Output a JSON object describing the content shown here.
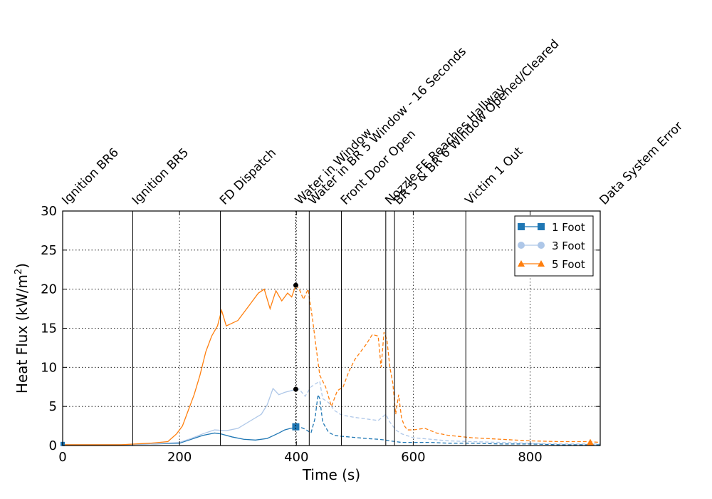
{
  "chart_data": {
    "type": "line",
    "xlabel": "Time (s)",
    "ylabel_main": "Heat Flux (kW/m",
    "ylabel_sup": "2",
    "ylabel_close": ")",
    "xlim": [
      0,
      920
    ],
    "ylim": [
      0,
      30
    ],
    "x_ticks": [
      0,
      200,
      400,
      600,
      800
    ],
    "y_ticks": [
      0,
      5,
      10,
      15,
      20,
      25,
      30
    ],
    "grid": true,
    "legend_position": "top-right",
    "events": [
      {
        "t": 0,
        "label": "Ignition BR6"
      },
      {
        "t": 120,
        "label": "Ignition BR5"
      },
      {
        "t": 270,
        "label": "FD Dispatch"
      },
      {
        "t": 399,
        "label": "Water in Window"
      },
      {
        "t": 422,
        "label": "Water in BR 5 Window - 16 Seconds"
      },
      {
        "t": 477,
        "label": "Front Door Open"
      },
      {
        "t": 553,
        "label": "Nozzle FF Reaches Hallway"
      },
      {
        "t": 568,
        "label": "BR 5 & BR 6 Window Opened/Cleared"
      },
      {
        "t": 690,
        "label": "Victim 1 Out"
      },
      {
        "t": 920,
        "label": "Data System Error"
      }
    ],
    "series": [
      {
        "name": "1 Foot",
        "color": "#1f77b4",
        "marker": "square",
        "x": [
          0,
          50,
          100,
          150,
          200,
          220,
          240,
          260,
          270,
          290,
          310,
          330,
          350,
          370,
          380,
          390,
          399,
          405,
          415,
          425,
          432,
          437,
          440,
          445,
          455,
          465,
          475,
          490,
          505,
          520,
          540,
          553,
          560,
          570,
          580,
          600,
          630,
          660,
          700,
          750,
          800,
          850,
          900,
          920
        ],
        "y": [
          0.1,
          0.1,
          0.1,
          0.2,
          0.3,
          0.8,
          1.3,
          1.6,
          1.5,
          1.1,
          0.8,
          0.7,
          0.9,
          1.6,
          2.0,
          2.2,
          2.3,
          2.4,
          2.1,
          1.6,
          3.5,
          6.5,
          6.0,
          3.0,
          1.7,
          1.3,
          1.2,
          1.1,
          1.0,
          0.9,
          0.8,
          0.7,
          0.6,
          0.5,
          0.4,
          0.4,
          0.4,
          0.3,
          0.3,
          0.2,
          0.2,
          0.1,
          0.1,
          0.1
        ]
      },
      {
        "name": "3 Foot",
        "color": "#aec7e8",
        "marker": "circle",
        "x": [
          0,
          50,
          100,
          150,
          200,
          220,
          240,
          260,
          280,
          300,
          320,
          340,
          350,
          360,
          370,
          380,
          390,
          399,
          405,
          415,
          425,
          435,
          440,
          445,
          455,
          465,
          475,
          485,
          500,
          520,
          540,
          553,
          560,
          570,
          580,
          600,
          630,
          660,
          700,
          750,
          800,
          850,
          900,
          920
        ],
        "y": [
          0.1,
          0.1,
          0.1,
          0.2,
          0.4,
          0.9,
          1.5,
          2.0,
          1.9,
          2.2,
          3.1,
          4.0,
          5.2,
          7.3,
          6.5,
          6.8,
          7.0,
          7.2,
          7.2,
          6.3,
          7.5,
          8.0,
          8.2,
          6.0,
          5.5,
          4.5,
          4.0,
          3.8,
          3.6,
          3.4,
          3.2,
          4.0,
          3.0,
          2.0,
          1.5,
          1.0,
          0.8,
          0.6,
          0.5,
          0.4,
          0.3,
          0.2,
          0.2,
          0.2
        ]
      },
      {
        "name": "5 Foot",
        "color": "#ff7f0e",
        "marker": "triangle",
        "x": [
          0,
          50,
          100,
          150,
          180,
          195,
          205,
          215,
          225,
          235,
          245,
          255,
          265,
          272,
          280,
          300,
          320,
          335,
          345,
          355,
          365,
          375,
          385,
          392,
          399,
          405,
          412,
          420,
          428,
          433,
          440,
          450,
          460,
          470,
          480,
          490,
          500,
          510,
          520,
          530,
          540,
          545,
          550,
          555,
          560,
          565,
          570,
          575,
          580,
          585,
          590,
          600,
          620,
          640,
          660,
          700,
          750,
          800,
          850,
          900,
          920
        ],
        "y": [
          0.1,
          0.1,
          0.1,
          0.3,
          0.5,
          1.5,
          2.5,
          4.5,
          6.5,
          9.0,
          12.0,
          14.0,
          15.3,
          17.3,
          15.3,
          16.0,
          18.0,
          19.5,
          20.0,
          17.5,
          19.8,
          18.5,
          19.5,
          19.0,
          20.5,
          20.0,
          18.7,
          20.0,
          16.0,
          13.0,
          9.0,
          7.5,
          5.0,
          7.0,
          7.5,
          9.5,
          11.0,
          12.0,
          13.0,
          14.2,
          14.0,
          10.0,
          14.5,
          13.5,
          10.0,
          8.0,
          4.0,
          6.5,
          3.5,
          2.5,
          2.0,
          2.0,
          2.2,
          1.6,
          1.3,
          1.0,
          0.8,
          0.6,
          0.5,
          0.5,
          0.4
        ]
      }
    ]
  }
}
